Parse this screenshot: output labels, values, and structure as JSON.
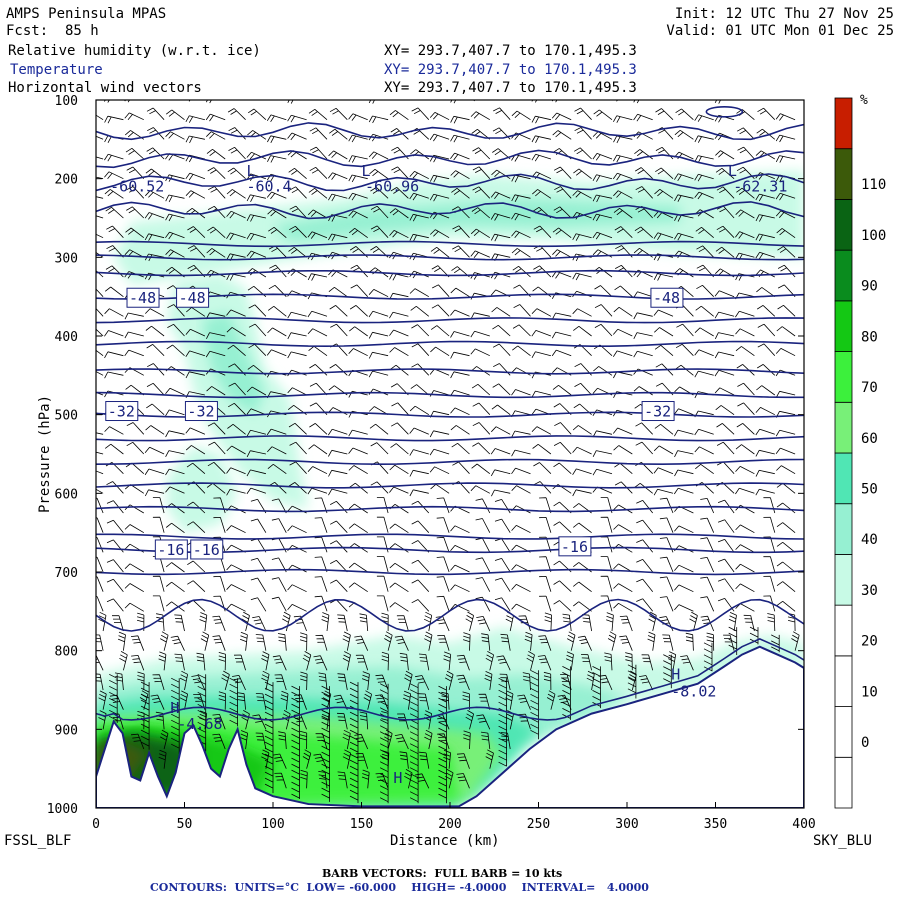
{
  "header": {
    "model": "AMPS Peninsula MPAS",
    "init": "Init: 12 UTC Thu 27 Nov 25",
    "fcst": "Fcst:  85 h",
    "valid": "Valid: 01 UTC Mon 01 Dec 25",
    "fields": [
      {
        "label": "Relative humidity (w.r.t. ice)",
        "xy": "XY= 293.7,407.7 to 170.1,495.3"
      },
      {
        "label": "Temperature",
        "xy": "XY= 293.7,407.7 to 170.1,495.3"
      },
      {
        "label": "Horizontal wind vectors",
        "xy": "XY= 293.7,407.7 to 170.1,495.3"
      }
    ]
  },
  "chart_data": {
    "type": "contour-cross-section",
    "xlabel": "Distance (km)",
    "ylabel": "Pressure (hPa)",
    "xlim": [
      0,
      400
    ],
    "ylim": [
      1000,
      100
    ],
    "x_ticks": [
      0,
      50,
      100,
      150,
      200,
      250,
      300,
      350,
      400
    ],
    "y_ticks": [
      100,
      200,
      300,
      400,
      500,
      600,
      700,
      800,
      900,
      1000
    ],
    "left_endpoint": "FSSL_BLF",
    "right_endpoint": "SKY_BLU",
    "colorbar": {
      "unit": "%",
      "levels": [
        0,
        10,
        20,
        30,
        40,
        50,
        60,
        70,
        80,
        90,
        100,
        110
      ],
      "colors": [
        "#ffffff",
        "#ffffff",
        "#ffffff",
        "#ffffff",
        "#c8fae6",
        "#96f0d2",
        "#50e6b4",
        "#78f078",
        "#3cf03c",
        "#14c814",
        "#0a8c1e",
        "#0a6414",
        "#3c5a0a",
        "#c81e00"
      ]
    },
    "contour_labels": [
      {
        "text": "-60.52",
        "x": 8,
        "p": 210
      },
      {
        "text": "L",
        "x": 85,
        "p": 190
      },
      {
        "text": "-60.4",
        "x": 85,
        "p": 210
      },
      {
        "text": "L",
        "x": 150,
        "p": 190
      },
      {
        "text": "-60.96",
        "x": 152,
        "p": 210
      },
      {
        "text": "L",
        "x": 357,
        "p": 190
      },
      {
        "text": "-62.31",
        "x": 360,
        "p": 210
      },
      {
        "text": "-48",
        "x": 26,
        "p": 352
      },
      {
        "text": "-48",
        "x": 54,
        "p": 352
      },
      {
        "text": "-48",
        "x": 322,
        "p": 352
      },
      {
        "text": "-32",
        "x": 14,
        "p": 496
      },
      {
        "text": "-32",
        "x": 59,
        "p": 496
      },
      {
        "text": "-32",
        "x": 317,
        "p": 496
      },
      {
        "text": "-16",
        "x": 42,
        "p": 672
      },
      {
        "text": "-16",
        "x": 62,
        "p": 672
      },
      {
        "text": "-16",
        "x": 270,
        "p": 668
      },
      {
        "text": "H",
        "x": 325,
        "p": 830
      },
      {
        "text": "-8.02",
        "x": 325,
        "p": 852
      },
      {
        "text": "H",
        "x": 42,
        "p": 873
      },
      {
        "text": "-4.68",
        "x": 46,
        "p": 893
      },
      {
        "text": "H",
        "x": 168,
        "p": 962
      }
    ],
    "isotherm_levels_C": [
      -60,
      -56,
      -52,
      -48,
      -44,
      -40,
      -36,
      -32,
      -28,
      -24,
      -20,
      -16,
      -12,
      -8,
      -4
    ]
  },
  "footer": {
    "barb_note": "BARB VECTORS:  FULL BARB = 10 kts",
    "contours_note": "CONTOURS:  UNITS=°C  LOW= -60.000    HIGH= -4.0000    INTERVAL=   4.0000"
  },
  "colors": {
    "contour": "#1a237e",
    "barb": "#000000"
  }
}
